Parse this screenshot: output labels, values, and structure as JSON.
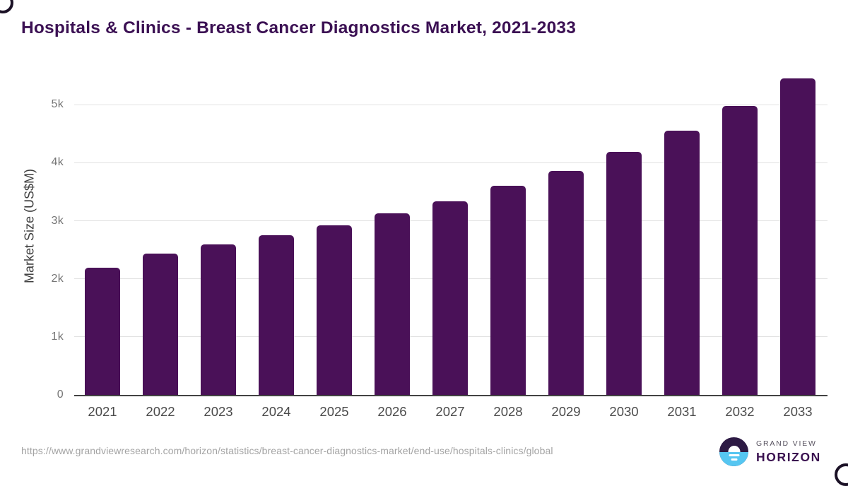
{
  "page": {
    "title": "Hospitals & Clinics - Breast Cancer Diagnostics Market, 2021-2033"
  },
  "chart_data": {
    "type": "bar",
    "title": "Hospitals & Clinics - Breast Cancer Diagnostics Market, 2021-2033",
    "categories": [
      "2021",
      "2022",
      "2023",
      "2024",
      "2025",
      "2026",
      "2027",
      "2028",
      "2029",
      "2030",
      "2031",
      "2032",
      "2033"
    ],
    "values": [
      2190,
      2430,
      2590,
      2750,
      2920,
      3130,
      3340,
      3600,
      3865,
      4185,
      4550,
      4975,
      5450
    ],
    "xlabel": "",
    "ylabel": "Market Size (US$M)",
    "ylim": [
      0,
      5600
    ],
    "yticks": [
      {
        "value": 0,
        "label": "0"
      },
      {
        "value": 1000,
        "label": "1k"
      },
      {
        "value": 2000,
        "label": "2k"
      },
      {
        "value": 3000,
        "label": "3k"
      },
      {
        "value": 4000,
        "label": "4k"
      },
      {
        "value": 5000,
        "label": "5k"
      }
    ],
    "grid": true,
    "legend": false,
    "bar_color": "#4A1158"
  },
  "footer": {
    "source_url": "https://www.grandviewresearch.com/horizon/statistics/breast-cancer-diagnostics-market/end-use/hospitals-clinics/global",
    "logo": {
      "line1": "GRAND VIEW",
      "line2": "HORIZON"
    }
  },
  "colors": {
    "bar": "#4A1158",
    "title": "#3B1053",
    "axis_title": "#3F3F3F",
    "y_tick_label": "#757575",
    "x_tick_label": "#4B4B4B",
    "gridline": "#E2E2E2",
    "baseline": "#424242",
    "source_url": "#A3A3A3",
    "logo_dark_half": "#2D1A44",
    "logo_blue_half": "#56C6F1",
    "logo_sun": "#FFFFFF",
    "logo_text_top": "#57525F",
    "logo_text_bottom": "#3A1150"
  }
}
